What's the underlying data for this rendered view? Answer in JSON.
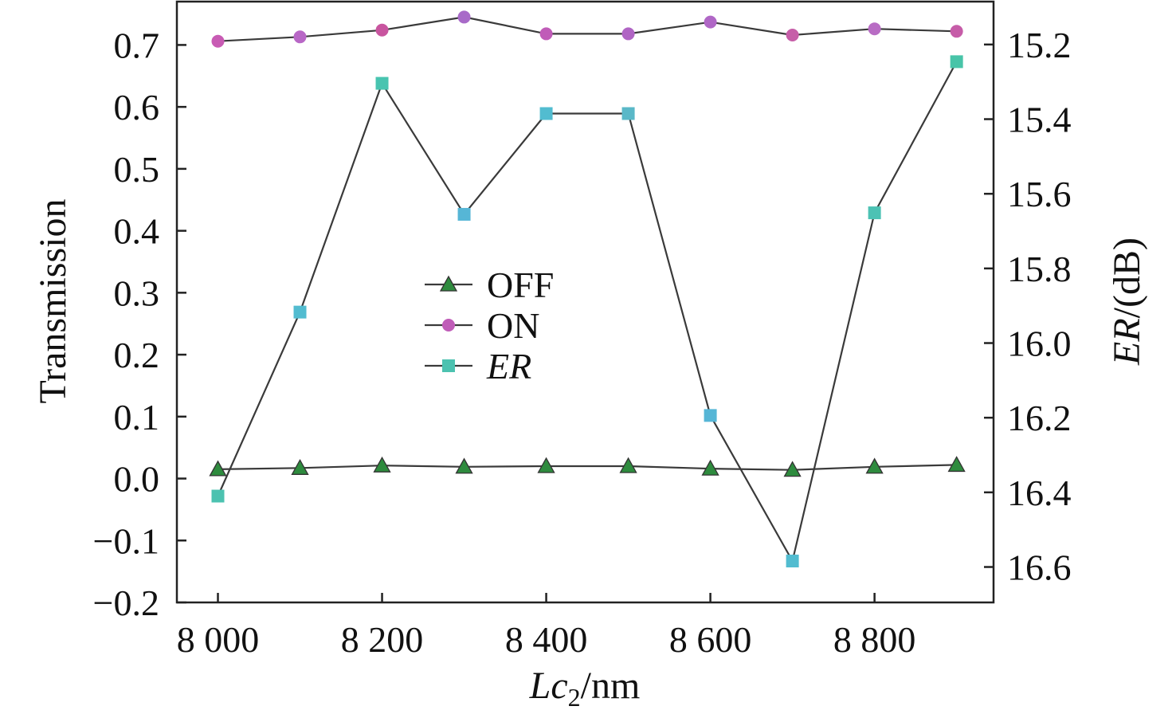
{
  "chart_data": {
    "type": "line",
    "x": [
      8000,
      8100,
      8200,
      8300,
      8400,
      8500,
      8600,
      8700,
      8800,
      8900
    ],
    "xlim": [
      7950,
      8945
    ],
    "x_ticks": [
      8000,
      8200,
      8400,
      8600,
      8800
    ],
    "x_tick_labels": [
      "8 000",
      "8 200",
      "8 400",
      "8 600",
      "8 800"
    ],
    "xlabel": {
      "italic": "Lc",
      "sub": "2",
      "rest": "/nm"
    },
    "left_axis": {
      "label": "Transmission",
      "ylim": [
        -0.2,
        0.77
      ],
      "ticks": [
        -0.2,
        -0.1,
        0.0,
        0.1,
        0.2,
        0.3,
        0.4,
        0.5,
        0.6,
        0.7
      ],
      "tick_labels": [
        "−0.2",
        "−0.1",
        "0.0",
        "0.1",
        "0.2",
        "0.3",
        "0.4",
        "0.5",
        "0.6",
        "0.7"
      ]
    },
    "right_axis": {
      "label_italic": "ER",
      "label_rest": "/(dB)",
      "ylim": [
        16.695,
        15.085
      ],
      "inverted": true,
      "ticks": [
        15.2,
        15.4,
        15.6,
        15.8,
        16.0,
        16.2,
        16.4,
        16.6
      ],
      "tick_labels": [
        "15.2",
        "15.4",
        "15.6",
        "15.8",
        "16.0",
        "16.2",
        "16.4",
        "16.6"
      ]
    },
    "series": [
      {
        "name": "OFF",
        "axis": "left",
        "marker": "triangle",
        "values": [
          0.015,
          0.017,
          0.021,
          0.019,
          0.02,
          0.02,
          0.016,
          0.014,
          0.019,
          0.022
        ],
        "colors": [
          "#2e8b3e",
          "#2e8b3e",
          "#2e8b3e",
          "#2e8b3e",
          "#2e8b3e",
          "#2e8b3e",
          "#2e8b3e",
          "#2e8b3e",
          "#2e8b3e",
          "#2e8b3e"
        ]
      },
      {
        "name": "ON",
        "axis": "left",
        "marker": "circle",
        "values": [
          0.706,
          0.713,
          0.724,
          0.745,
          0.718,
          0.718,
          0.737,
          0.716,
          0.726,
          0.722
        ],
        "colors": [
          "#c85bb4",
          "#b867c6",
          "#c8559f",
          "#a86ac8",
          "#c05cb8",
          "#b064c4",
          "#b067c6",
          "#c65ea8",
          "#b86cc4",
          "#c65ca8"
        ]
      },
      {
        "name": "ER",
        "name_italic": true,
        "axis": "right",
        "marker": "square",
        "values": [
          16.41,
          15.917,
          15.304,
          15.655,
          15.385,
          15.385,
          16.194,
          16.584,
          15.651,
          15.246
        ],
        "colors": [
          "#4cc2b0",
          "#52bcd0",
          "#48c4b0",
          "#56b6d6",
          "#52bcd0",
          "#5ab8c8",
          "#56b6d6",
          "#52bcd0",
          "#4cc2b4",
          "#48c4a8"
        ]
      }
    ],
    "legend": {
      "position": "center",
      "entries": [
        {
          "label": "OFF",
          "italic": false,
          "marker": "triangle",
          "color": "#2e8b3e"
        },
        {
          "label": "ON",
          "italic": false,
          "marker": "circle",
          "color": "#c05cb8"
        },
        {
          "label": "ER",
          "italic": true,
          "marker": "square",
          "color": "#4cc2b0"
        }
      ]
    },
    "grid": false
  }
}
